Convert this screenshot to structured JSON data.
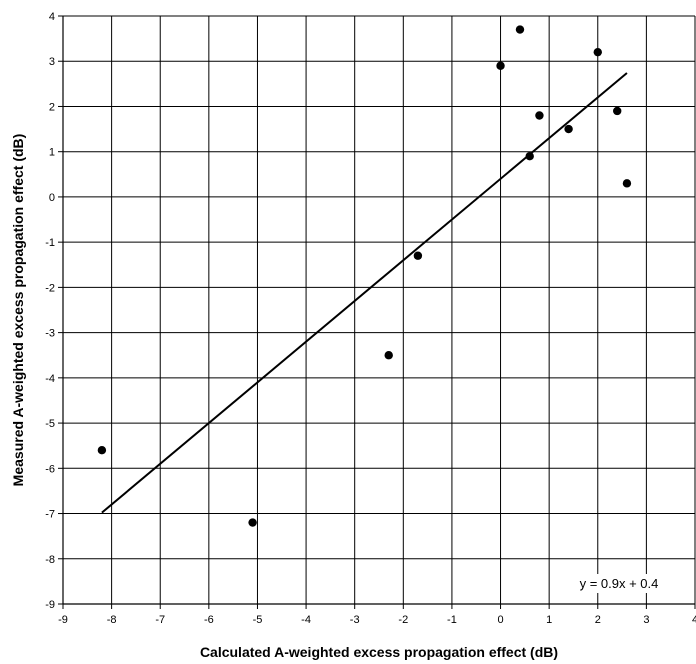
{
  "chart_data": {
    "type": "scatter",
    "xlabel": "Calculated A-weighted excess propagation effect (dB)",
    "ylabel": "Measured A-weighted excess propagation effect (dB)",
    "xlim": [
      -9,
      4
    ],
    "ylim": [
      -9,
      4
    ],
    "xticks": [
      -9,
      -8,
      -7,
      -6,
      -5,
      -4,
      -3,
      -2,
      -1,
      0,
      1,
      2,
      3,
      4
    ],
    "yticks": [
      -9,
      -8,
      -7,
      -6,
      -5,
      -4,
      -3,
      -2,
      -1,
      0,
      1,
      2,
      3,
      4
    ],
    "grid": true,
    "legend": "none",
    "series": [
      {
        "points": [
          {
            "x": -8.2,
            "y": -5.6
          },
          {
            "x": -5.1,
            "y": -7.2
          },
          {
            "x": -2.3,
            "y": -3.5
          },
          {
            "x": -1.7,
            "y": -1.3
          },
          {
            "x": 0.0,
            "y": 2.9
          },
          {
            "x": 0.4,
            "y": 3.7
          },
          {
            "x": 0.6,
            "y": 0.9
          },
          {
            "x": 0.8,
            "y": 1.8
          },
          {
            "x": 1.4,
            "y": 1.5
          },
          {
            "x": 2.0,
            "y": 3.2
          },
          {
            "x": 2.4,
            "y": 1.9
          },
          {
            "x": 2.6,
            "y": 0.3
          }
        ],
        "color": "#000000"
      }
    ],
    "trendline": {
      "slope": 0.9,
      "intercept": 0.4,
      "x_range": [
        -8.2,
        2.6
      ],
      "equation_label": "y = 0.9x + 0.4",
      "color": "#000000"
    }
  }
}
